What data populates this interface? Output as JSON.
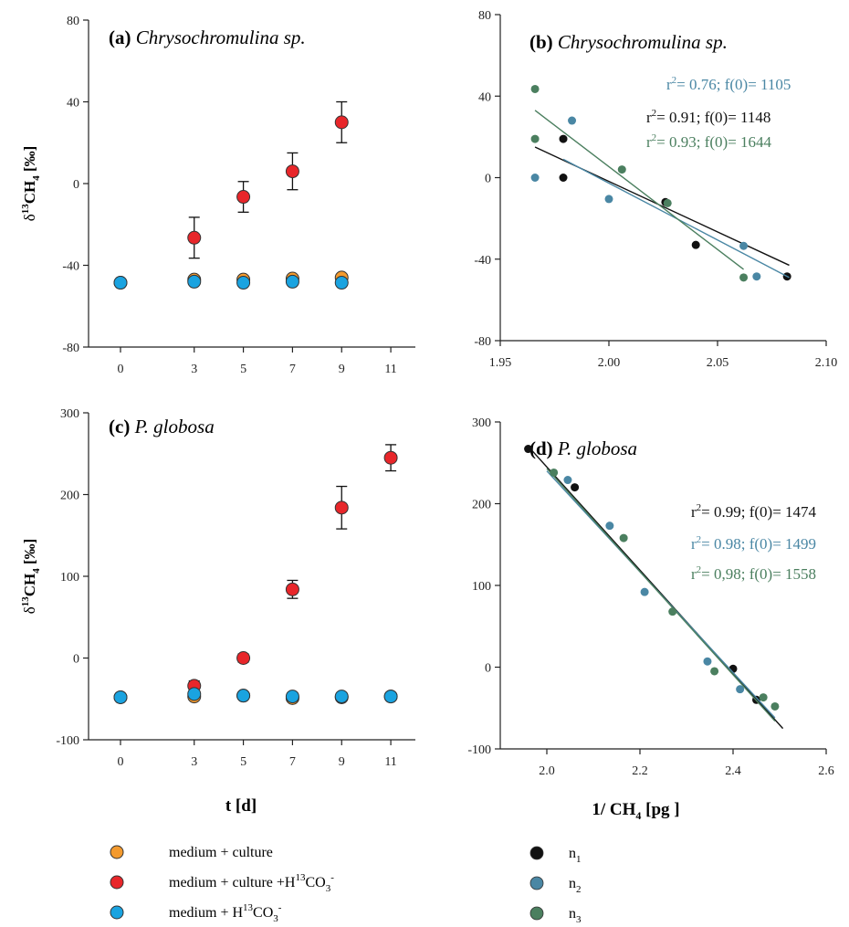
{
  "colors": {
    "medium_culture": "#f39a2e",
    "medium_culture_h13": "#e8262a",
    "medium_h13": "#1aa3e0",
    "n1": "#111111",
    "n2": "#4a87a4",
    "n3": "#4b7f5f"
  },
  "chart_data": [
    {
      "id": "a",
      "type": "scatter",
      "label": "(a)",
      "organism": "Chrysochromulina sp.",
      "xlabel": "",
      "ylabel_main": "δ",
      "ylabel_sup": "13",
      "ylabel_rest": "CH",
      "ylabel_sub": "4",
      "ylabel_tail": " [‰]",
      "xlim": [
        -1.3,
        12
      ],
      "ylim": [
        -80,
        80
      ],
      "xticks": [
        0,
        3,
        5,
        7,
        9,
        11
      ],
      "yticks": [
        -80,
        -40,
        0,
        40,
        80
      ],
      "series": [
        {
          "key": "medium_culture",
          "x": [
            0,
            3,
            5,
            7,
            9
          ],
          "y": [
            -48.5,
            -47,
            -47,
            -46.5,
            -46
          ],
          "err": [
            0,
            0,
            0,
            0,
            0
          ]
        },
        {
          "key": "medium_culture_h13",
          "x": [
            3,
            5,
            7,
            9
          ],
          "y": [
            -26.5,
            -6.5,
            6,
            30
          ],
          "err": [
            10,
            7.5,
            9,
            10
          ]
        },
        {
          "key": "medium_h13",
          "x": [
            0,
            3,
            5,
            7,
            9
          ],
          "y": [
            -48.5,
            -48,
            -48.5,
            -48,
            -48.5
          ],
          "err": [
            0,
            0,
            0,
            0,
            0
          ]
        }
      ]
    },
    {
      "id": "b",
      "type": "scatter",
      "label": "(b)",
      "organism": "Chrysochromulina sp.",
      "xlabel": "",
      "xlim": [
        1.95,
        2.1
      ],
      "ylim": [
        -80,
        80
      ],
      "xticks": [
        1.95,
        2.0,
        2.05,
        2.1
      ],
      "xtick_labels": [
        "1.95",
        "2.00",
        "2.05",
        "2.10"
      ],
      "yticks": [
        -80,
        -40,
        0,
        40,
        80
      ],
      "series": [
        {
          "key": "n1",
          "x": [
            1.979,
            1.979,
            2.026,
            2.04,
            2.082
          ],
          "y": [
            19,
            0,
            -12,
            -33,
            -48.5
          ],
          "fit": {
            "x0": 1.966,
            "y0": 15,
            "x1": 2.083,
            "y1": -43
          }
        },
        {
          "key": "n2",
          "x": [
            1.966,
            1.983,
            2.0,
            2.062,
            2.068
          ],
          "y": [
            0,
            28,
            -10.5,
            -33.5,
            -48.5
          ],
          "fit": {
            "x0": 1.979,
            "y0": 9,
            "x1": 2.083,
            "y1": -49
          }
        },
        {
          "key": "n3",
          "x": [
            1.966,
            1.966,
            2.006,
            2.027,
            2.062
          ],
          "y": [
            43.5,
            19,
            4,
            -12.5,
            -49
          ],
          "fit": {
            "x0": 1.966,
            "y0": 33,
            "x1": 2.062,
            "y1": -45
          }
        }
      ],
      "annotations": [
        {
          "key": "n2",
          "r2": "0.76",
          "f0": "1105",
          "sep": ".",
          "pos": "upper"
        },
        {
          "key": "n1",
          "r2": "0.91",
          "f0": "1148",
          "sep": ".",
          "pos": "middle"
        },
        {
          "key": "n3",
          "r2": "0.93",
          "f0": "1644",
          "sep": ".",
          "pos": "lower"
        }
      ]
    },
    {
      "id": "c",
      "type": "scatter",
      "label": "(c)",
      "organism": "P. globosa",
      "xlabel": "t [d]",
      "ylabel_main": "δ",
      "ylabel_sup": "13",
      "ylabel_rest": "CH",
      "ylabel_sub": "4",
      "ylabel_tail": " [‰]",
      "xlim": [
        -1.3,
        12
      ],
      "ylim": [
        -100,
        300
      ],
      "xticks": [
        0,
        3,
        5,
        7,
        9,
        11
      ],
      "yticks": [
        -100,
        0,
        100,
        200,
        300
      ],
      "series": [
        {
          "key": "medium_culture",
          "x": [
            0,
            3,
            5,
            7,
            9,
            11
          ],
          "y": [
            -48,
            -47,
            -46,
            -49,
            -48,
            -47
          ],
          "err": [
            0,
            0,
            0,
            0,
            0,
            0
          ]
        },
        {
          "key": "medium_culture_h13",
          "x": [
            3,
            5,
            7,
            9,
            11
          ],
          "y": [
            -34,
            0,
            84,
            184,
            245
          ],
          "err": [
            6,
            5,
            11,
            26,
            16
          ]
        },
        {
          "key": "medium_h13",
          "x": [
            0,
            3,
            5,
            7,
            9,
            11
          ],
          "y": [
            -48,
            -44,
            -46,
            -47,
            -47,
            -47
          ],
          "err": [
            0,
            0,
            0,
            0,
            0,
            0
          ]
        }
      ]
    },
    {
      "id": "d",
      "type": "scatter",
      "label": "(d)",
      "organism": "P. globosa",
      "xlabel": "1/ CH",
      "xlabel_sub": "4",
      "xlabel_tail": " [pg ]",
      "xlim": [
        1.9,
        2.6
      ],
      "ylim": [
        -100,
        300
      ],
      "xticks": [
        2.0,
        2.2,
        2.4,
        2.6
      ],
      "xtick_labels": [
        "2.0",
        "2.2",
        "2.4",
        "2.6"
      ],
      "yticks": [
        -100,
        0,
        100,
        200,
        300
      ],
      "series": [
        {
          "key": "n1",
          "x": [
            1.96,
            2.06,
            2.4,
            2.45
          ],
          "y": [
            267,
            220,
            -2,
            -40
          ],
          "fit": {
            "x0": 1.965,
            "y0": 267,
            "x1": 2.507,
            "y1": -75
          }
        },
        {
          "key": "n2",
          "x": [
            2.045,
            2.135,
            2.21,
            2.345,
            2.415
          ],
          "y": [
            229,
            173,
            92,
            7,
            -27
          ],
          "fit": {
            "x0": 2.0,
            "y0": 240,
            "x1": 2.49,
            "y1": -62
          }
        },
        {
          "key": "n3",
          "x": [
            2.015,
            2.165,
            2.27,
            2.36,
            2.465,
            2.49
          ],
          "y": [
            238,
            158,
            68,
            -5,
            -37,
            -48
          ],
          "fit": {
            "x0": 2.0,
            "y0": 243,
            "x1": 2.49,
            "y1": -66
          }
        }
      ],
      "annotations": [
        {
          "key": "n1",
          "r2": "0.99",
          "f0": "1474",
          "sep": ".",
          "pos": "upper"
        },
        {
          "key": "n2",
          "r2": "0.98",
          "f0": "1499",
          "sep": ".",
          "pos": "middle"
        },
        {
          "key": "n3",
          "r2": "0,98",
          "f0": "1558",
          "sep": ",",
          "pos": "lower"
        }
      ]
    }
  ],
  "legend_left": [
    {
      "key": "medium_culture",
      "text": "medium + culture",
      "h13": false
    },
    {
      "key": "medium_culture_h13",
      "text": "medium + culture +H",
      "h13": true
    },
    {
      "key": "medium_h13",
      "text": "medium + H",
      "h13": true
    }
  ],
  "legend_right": [
    {
      "key": "n1",
      "text": "n",
      "sub": "1"
    },
    {
      "key": "n2",
      "text": "n",
      "sub": "2"
    },
    {
      "key": "n3",
      "text": "n",
      "sub": "3"
    }
  ],
  "h13_parts": {
    "sup": "13",
    "co": "CO",
    "sub": "3",
    "minus": "-"
  },
  "r2_parts": {
    "r": "r",
    "sup": "2",
    "eq": "= ",
    "f0": "; f(0)= "
  }
}
